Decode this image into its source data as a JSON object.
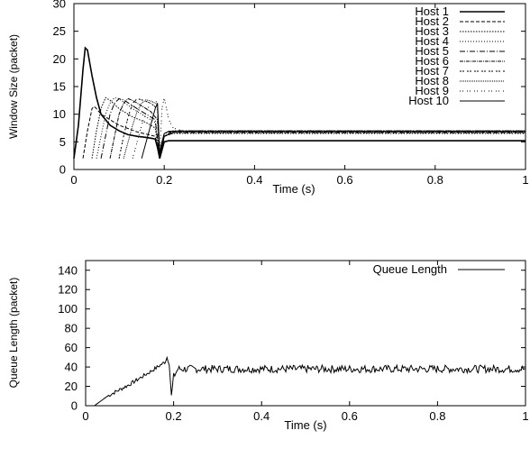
{
  "chart_data": [
    {
      "type": "line",
      "title": "",
      "xlabel": "Time (s)",
      "ylabel": "Window Size (packet)",
      "xlim": [
        0,
        1
      ],
      "ylim": [
        0,
        30
      ],
      "xticks": [
        "0",
        "0.2",
        "0.4",
        "0.6",
        "0.8",
        "1"
      ],
      "yticks": [
        "0",
        "5",
        "10",
        "15",
        "20",
        "25",
        "30"
      ],
      "grid": false,
      "legend_position": "top-right",
      "series": [
        {
          "name": "Host 1",
          "dash": "solid",
          "width": 1.6,
          "points": [
            [
              0,
              2
            ],
            [
              0.01,
              8
            ],
            [
              0.02,
              18
            ],
            [
              0.025,
              22
            ],
            [
              0.03,
              21.6
            ],
            [
              0.04,
              17
            ],
            [
              0.05,
              13
            ],
            [
              0.06,
              10
            ],
            [
              0.07,
              9
            ],
            [
              0.08,
              8
            ],
            [
              0.1,
              7
            ],
            [
              0.12,
              6.3
            ],
            [
              0.14,
              6
            ],
            [
              0.16,
              5.8
            ],
            [
              0.175,
              5.6
            ],
            [
              0.18,
              5.5
            ],
            [
              0.185,
              4
            ],
            [
              0.19,
              2
            ],
            [
              0.195,
              3.5
            ],
            [
              0.2,
              5
            ],
            [
              0.21,
              5.2
            ],
            [
              0.22,
              5.2
            ],
            [
              1,
              5.2
            ]
          ]
        },
        {
          "name": "Host 2",
          "dash": "4,2",
          "width": 1,
          "points": [
            [
              0.02,
              2
            ],
            [
              0.03,
              7
            ],
            [
              0.04,
              11
            ],
            [
              0.045,
              11.4
            ],
            [
              0.05,
              11
            ],
            [
              0.06,
              10
            ],
            [
              0.08,
              9
            ],
            [
              0.1,
              8
            ],
            [
              0.14,
              6.8
            ],
            [
              0.18,
              6
            ],
            [
              0.19,
              2.5
            ],
            [
              0.2,
              6
            ],
            [
              0.22,
              6.9
            ],
            [
              1,
              6.9
            ]
          ]
        },
        {
          "name": "Host 3",
          "dash": "1.5,1.5",
          "width": 1,
          "points": [
            [
              0.04,
              2
            ],
            [
              0.05,
              7
            ],
            [
              0.06,
              11
            ],
            [
              0.07,
              13
            ],
            [
              0.08,
              12.5
            ],
            [
              0.1,
              11
            ],
            [
              0.13,
              9.5
            ],
            [
              0.16,
              8.5
            ],
            [
              0.18,
              7.5
            ],
            [
              0.19,
              2
            ],
            [
              0.2,
              6
            ],
            [
              0.22,
              7
            ],
            [
              1,
              7
            ]
          ]
        },
        {
          "name": "Host 4",
          "dash": "1,2",
          "width": 1,
          "points": [
            [
              0.05,
              2
            ],
            [
              0.06,
              6
            ],
            [
              0.07,
              10
            ],
            [
              0.08,
              12
            ],
            [
              0.09,
              13
            ],
            [
              0.1,
              12.8
            ],
            [
              0.13,
              11
            ],
            [
              0.16,
              9.5
            ],
            [
              0.18,
              8.5
            ],
            [
              0.19,
              2
            ],
            [
              0.2,
              6
            ],
            [
              0.22,
              6.5
            ],
            [
              1,
              6.5
            ]
          ]
        },
        {
          "name": "Host 5",
          "dash": "6,2,1,2",
          "width": 1,
          "points": [
            [
              0.06,
              2
            ],
            [
              0.07,
              6
            ],
            [
              0.08,
              10
            ],
            [
              0.09,
              12
            ],
            [
              0.1,
              12.8
            ],
            [
              0.11,
              12.6
            ],
            [
              0.14,
              11
            ],
            [
              0.17,
              9.5
            ],
            [
              0.18,
              9
            ],
            [
              0.19,
              2.5
            ],
            [
              0.2,
              6.5
            ],
            [
              0.22,
              7
            ],
            [
              1,
              7
            ]
          ]
        },
        {
          "name": "Host 6",
          "dash": "4,1,1,1",
          "width": 1,
          "points": [
            [
              0.08,
              2
            ],
            [
              0.09,
              6
            ],
            [
              0.1,
              10
            ],
            [
              0.11,
              12
            ],
            [
              0.12,
              12.8
            ],
            [
              0.13,
              12.5
            ],
            [
              0.15,
              11.5
            ],
            [
              0.17,
              10.5
            ],
            [
              0.185,
              9
            ],
            [
              0.19,
              2
            ],
            [
              0.2,
              6
            ],
            [
              0.22,
              6.7
            ],
            [
              1,
              6.7
            ]
          ]
        },
        {
          "name": "Host 7",
          "dash": "2,1,2,3",
          "width": 1,
          "points": [
            [
              0.1,
              2
            ],
            [
              0.11,
              6
            ],
            [
              0.12,
              9.5
            ],
            [
              0.13,
              12
            ],
            [
              0.14,
              12.8
            ],
            [
              0.15,
              12.6
            ],
            [
              0.17,
              12
            ],
            [
              0.185,
              11
            ],
            [
              0.19,
              2.5
            ],
            [
              0.2,
              6
            ],
            [
              0.22,
              6.6
            ],
            [
              1,
              6.6
            ]
          ]
        },
        {
          "name": "Host 8",
          "dash": "1,1",
          "width": 1,
          "points": [
            [
              0.11,
              2
            ],
            [
              0.12,
              5
            ],
            [
              0.13,
              8
            ],
            [
              0.14,
              10.5
            ],
            [
              0.15,
              12
            ],
            [
              0.16,
              12.6
            ],
            [
              0.17,
              12.4
            ],
            [
              0.185,
              11.8
            ],
            [
              0.19,
              2
            ],
            [
              0.2,
              6
            ],
            [
              0.22,
              6.8
            ],
            [
              1,
              6.8
            ]
          ]
        },
        {
          "name": "Host 9",
          "dash": "1,2,1,4",
          "width": 1,
          "points": [
            [
              0.13,
              2
            ],
            [
              0.14,
              5
            ],
            [
              0.15,
              8
            ],
            [
              0.16,
              10.5
            ],
            [
              0.17,
              12
            ],
            [
              0.18,
              12.5
            ],
            [
              0.185,
              12
            ],
            [
              0.19,
              2.5
            ],
            [
              0.195,
              11
            ],
            [
              0.2,
              13
            ],
            [
              0.205,
              11
            ],
            [
              0.21,
              9
            ],
            [
              0.22,
              7.5
            ],
            [
              0.24,
              7
            ],
            [
              1,
              7
            ]
          ]
        },
        {
          "name": "Host 10",
          "dash": "solid",
          "width": 1,
          "points": [
            [
              0.15,
              2
            ],
            [
              0.16,
              5
            ],
            [
              0.17,
              8
            ],
            [
              0.18,
              11
            ],
            [
              0.185,
              12
            ],
            [
              0.19,
              3
            ],
            [
              0.195,
              5
            ],
            [
              0.2,
              6.5
            ],
            [
              0.21,
              6.9
            ],
            [
              1,
              6.9
            ]
          ]
        }
      ]
    },
    {
      "type": "line",
      "title": "",
      "xlabel": "Time (s)",
      "ylabel": "Queue Length (packet)",
      "xlim": [
        0,
        1
      ],
      "ylim": [
        0,
        150
      ],
      "xticks": [
        "0",
        "0.2",
        "0.4",
        "0.6",
        "0.8",
        "1"
      ],
      "yticks": [
        "0",
        "20",
        "40",
        "60",
        "80",
        "100",
        "120",
        "140"
      ],
      "grid": false,
      "legend_position": "top-right",
      "series": [
        {
          "name": "Queue Length",
          "dash": "solid",
          "width": 1,
          "noise_amplitude": 4,
          "points": [
            [
              0,
              0
            ],
            [
              0.02,
              0
            ],
            [
              0.05,
              10
            ],
            [
              0.1,
              22
            ],
            [
              0.15,
              36
            ],
            [
              0.18,
              45
            ],
            [
              0.185,
              50
            ],
            [
              0.19,
              44
            ],
            [
              0.195,
              10
            ],
            [
              0.2,
              30
            ],
            [
              0.21,
              38
            ],
            [
              1,
              38
            ]
          ]
        }
      ]
    }
  ]
}
